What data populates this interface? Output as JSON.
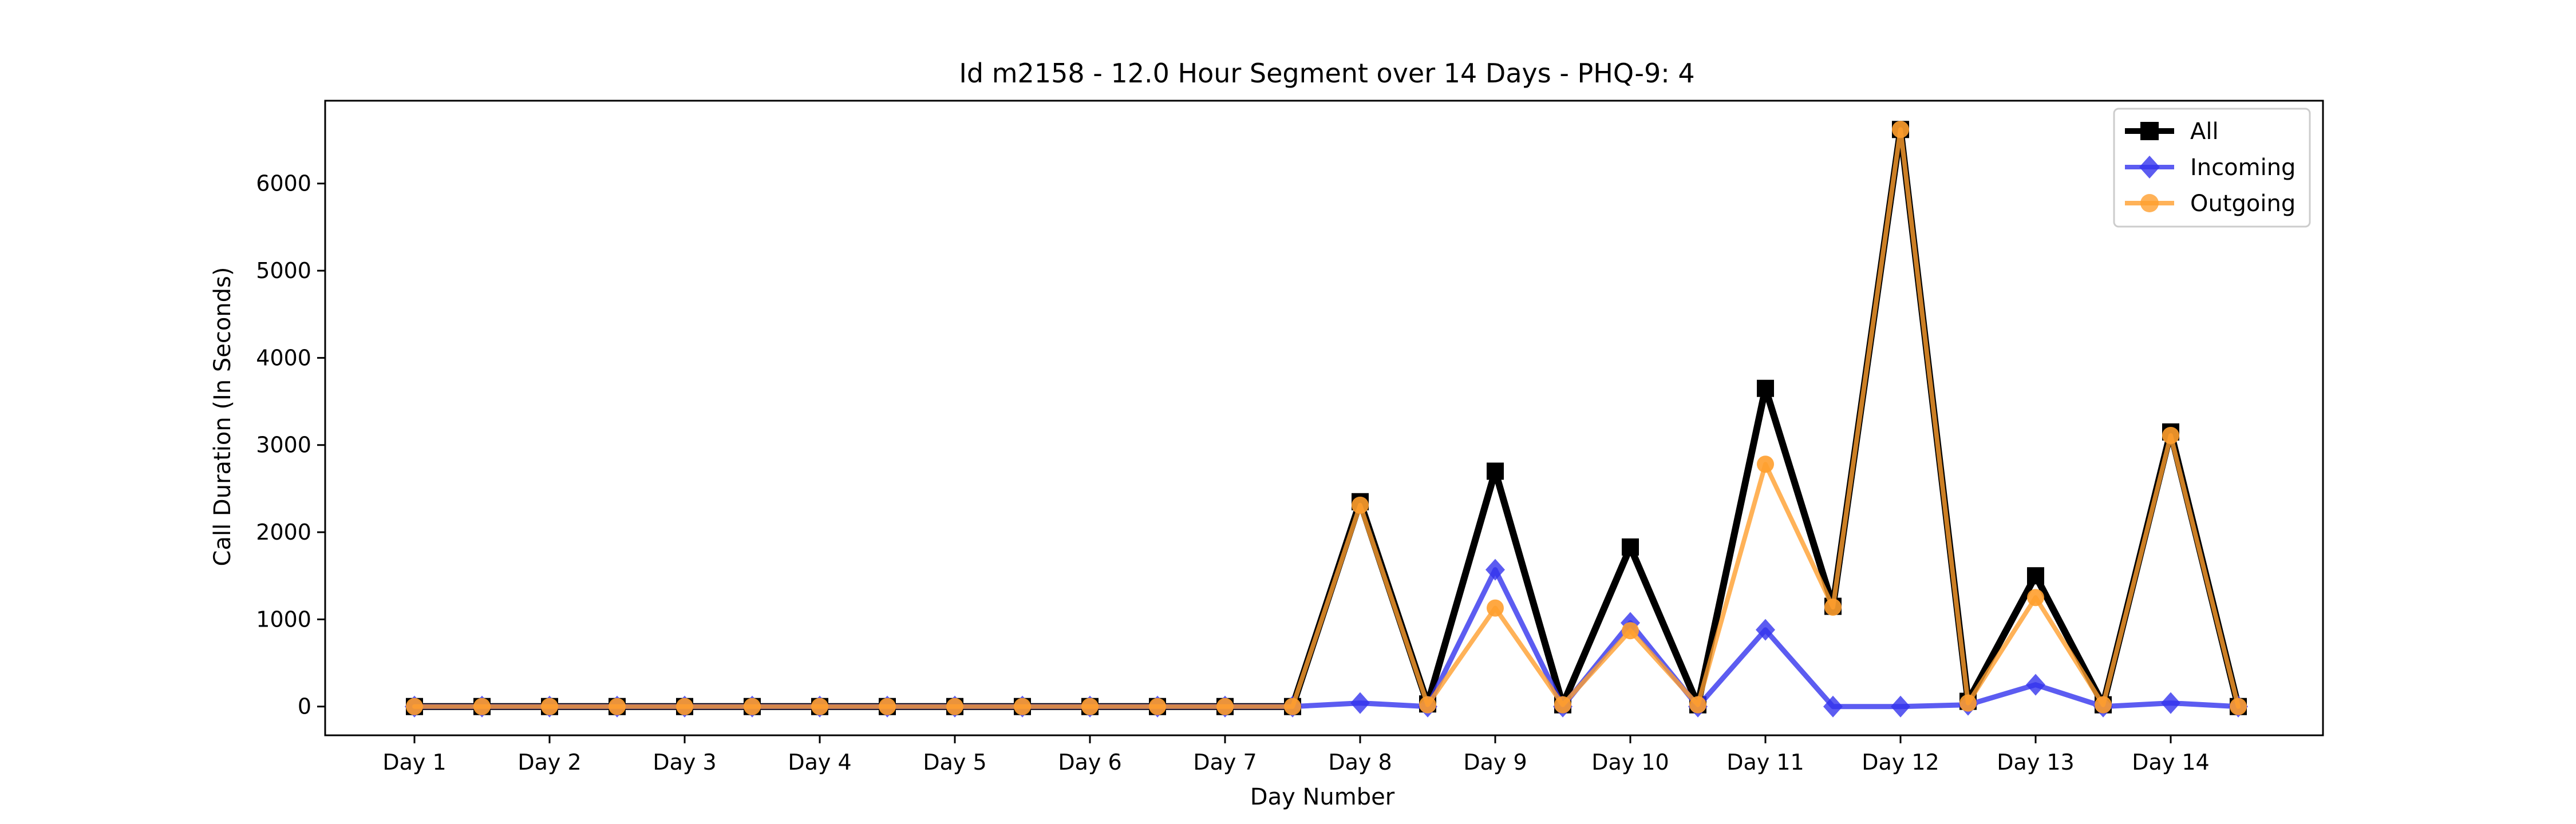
{
  "chart_data": {
    "type": "line",
    "title": "Id m2158 - 12.0 Hour Segment over 14 Days - PHQ-9: 4",
    "xlabel": "Day Number",
    "ylabel": "Call Duration (In Seconds)",
    "x_tick_labels": [
      "Day 1",
      "Day 2",
      "Day 3",
      "Day 4",
      "Day 5",
      "Day 6",
      "Day 7",
      "Day 8",
      "Day 9",
      "Day 10",
      "Day 11",
      "Day 12",
      "Day 13",
      "Day 14"
    ],
    "y_ticks": [
      0,
      1000,
      2000,
      3000,
      4000,
      5000,
      6000
    ],
    "ylim": [
      -330,
      6950
    ],
    "segments": 28,
    "grid": false,
    "legend_position": "top-right",
    "series": [
      {
        "name": "All",
        "color": "#000000",
        "marker": "square",
        "values": [
          0,
          0,
          0,
          0,
          0,
          0,
          0,
          0,
          0,
          0,
          0,
          0,
          0,
          0,
          2350,
          30,
          2700,
          20,
          1830,
          20,
          3650,
          1150,
          6620,
          60,
          1500,
          20,
          3150,
          0
        ]
      },
      {
        "name": "Incoming",
        "color": "#3333ee",
        "marker": "diamond",
        "values": [
          0,
          0,
          0,
          0,
          0,
          0,
          0,
          0,
          0,
          0,
          0,
          0,
          0,
          0,
          40,
          0,
          1570,
          0,
          960,
          0,
          880,
          0,
          0,
          20,
          250,
          0,
          40,
          0
        ]
      },
      {
        "name": "Outgoing",
        "color": "#ff9f2e",
        "marker": "circle",
        "values": [
          0,
          0,
          0,
          0,
          0,
          0,
          0,
          0,
          0,
          0,
          0,
          0,
          0,
          0,
          2310,
          20,
          1130,
          20,
          870,
          20,
          2780,
          1140,
          6620,
          40,
          1250,
          20,
          3110,
          0
        ]
      }
    ]
  }
}
